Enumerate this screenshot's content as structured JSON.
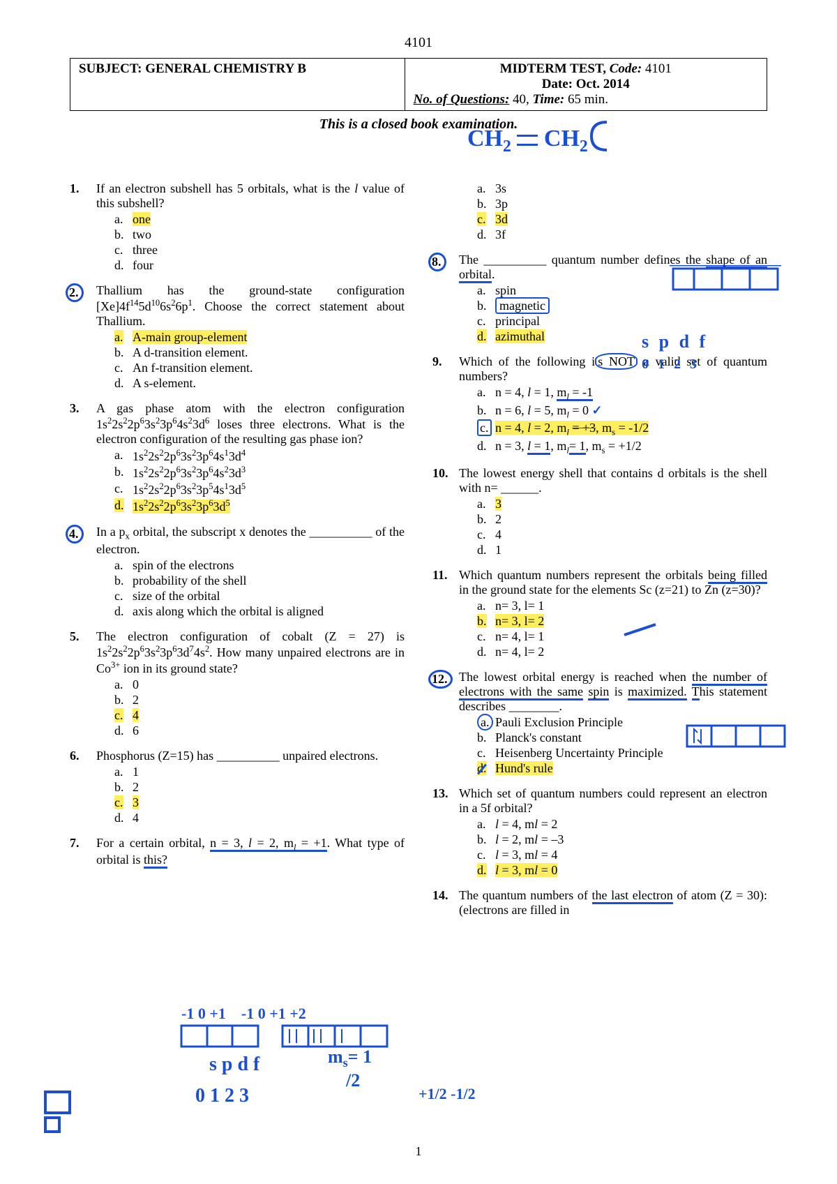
{
  "page_code": "4101",
  "header": {
    "subject_label": "SUBJECT:",
    "subject": "GENERAL CHEMISTRY B",
    "test_label": "MIDTERM TEST,",
    "code_label": "Code:",
    "code": "4101",
    "date_label": "Date:",
    "date": "Oct. 2014",
    "nq_label": "No. of Questions:",
    "nq": "40,",
    "time_label": "Time:",
    "time": "65 min."
  },
  "closed_book": "This is a closed book examination.",
  "footer_page": "1",
  "colors": {
    "highlight": "#ffef5e",
    "pen": "#1a4fd4",
    "text": "#000000",
    "background": "#ffffff"
  },
  "typography": {
    "body_font": "Times New Roman",
    "body_size_pt": 14,
    "pen_font": "Comic Sans MS"
  },
  "annotations": {
    "ch2": "CH₂ = CH₂",
    "spin_box": "s p d f  0 1 2 3",
    "ms_half": "mₛ = 1/2",
    "frac": "+1/2 -1/2",
    "nums_bottom": "0 1 2 3",
    "arrows_bottom": "-1 0 +1   -1 0 +1 +2"
  },
  "left_questions": [
    {
      "num": "1.",
      "text_html": "If an electron subshell has 5 orbitals, what is the <span class='ital'>l</span> value of this subshell?",
      "opts": [
        {
          "l": "a.",
          "t": "one",
          "hl": true
        },
        {
          "l": "b.",
          "t": "two"
        },
        {
          "l": "c.",
          "t": "three"
        },
        {
          "l": "d.",
          "t": "four"
        }
      ]
    },
    {
      "num": "2.",
      "circled": true,
      "text_html": "Thallium has the ground-state configuration [Xe]4f<sup>14</sup>5d<sup>10</sup>6s<sup>2</sup>6p<sup>1</sup>. Choose the correct statement about Thallium.",
      "opts": [
        {
          "l": "a.",
          "t": "A-main group-element",
          "hl": true,
          "hl_letter": true
        },
        {
          "l": "b.",
          "t": "A d-transition element."
        },
        {
          "l": "c.",
          "t": "An f-transition element."
        },
        {
          "l": "d.",
          "t": "A s-element."
        }
      ]
    },
    {
      "num": "3.",
      "text_html": "A gas phase atom with the electron configuration 1s<sup>2</sup>2s<sup>2</sup>2p<sup>6</sup>3s<sup>2</sup>3p<sup>6</sup>4s<sup>2</sup>3d<sup>6</sup> loses three electrons. What is the electron configuration of the resulting gas phase ion?",
      "opts": [
        {
          "l": "a.",
          "t_html": "1s<sup>2</sup>2s<sup>2</sup>2p<sup>6</sup>3s<sup>2</sup>3p<sup>6</sup>4s<sup>1</sup>3d<sup>4</sup>"
        },
        {
          "l": "b.",
          "t_html": "1s<sup>2</sup>2s<sup>2</sup>2p<sup>6</sup>3s<sup>2</sup>3p<sup>6</sup>4s<sup>2</sup>3d<sup>3</sup>"
        },
        {
          "l": "c.",
          "t_html": "1s<sup>2</sup>2s<sup>2</sup>2p<sup>6</sup>3s<sup>2</sup>3p<sup>5</sup>4s<sup>1</sup>3d<sup>5</sup>"
        },
        {
          "l": "d.",
          "t_html": "1s<sup>2</sup>2s<sup>2</sup>2p<sup>6</sup>3s<sup>2</sup>3p<sup>6</sup>3d<sup>5</sup>",
          "hl": true,
          "hl_letter": true
        }
      ]
    },
    {
      "num": "4.",
      "circled": true,
      "text_html": "In a p<sub>x</sub> orbital, the subscript x denotes the __________ of the electron.",
      "opts": [
        {
          "l": "a.",
          "t": "spin of the electrons"
        },
        {
          "l": "b.",
          "t": "probability of the shell"
        },
        {
          "l": "c.",
          "t": "size of the orbital"
        },
        {
          "l": "d.",
          "t": "axis along which the orbital is aligned"
        }
      ]
    },
    {
      "num": "5.",
      "text_html": "The electron configuration of cobalt (Z = 27) is 1s<sup>2</sup>2s<sup>2</sup>2p<sup>6</sup>3s<sup>2</sup>3p<sup>6</sup>3d<sup>7</sup>4s<sup>2</sup>. How many unpaired electrons are in Co<sup>3+</sup> ion in its ground state?",
      "opts": [
        {
          "l": "a.",
          "t": "0"
        },
        {
          "l": "b.",
          "t": "2"
        },
        {
          "l": "c.",
          "t": "4",
          "hl": true,
          "hl_letter": true
        },
        {
          "l": "d.",
          "t": "6"
        }
      ]
    },
    {
      "num": "6.",
      "text_html": "Phosphorus (Z=15) has __________ unpaired electrons.",
      "opts": [
        {
          "l": "a.",
          "t": "1"
        },
        {
          "l": "b.",
          "t": "2"
        },
        {
          "l": "c.",
          "t": "3",
          "hl": true,
          "hl_letter": true
        },
        {
          "l": "d.",
          "t": "4"
        }
      ]
    },
    {
      "num": "7.",
      "text_html": "For a certain orbital, <span class='pen-underline'>n = 3, <span class='ital'>l</span> = 2, m<sub><span class='ital'>l</span></sub> = +1</span>. What type of orbital is <span class='pen-underline'>this?</span>"
    }
  ],
  "right_questions": [
    {
      "opts_only": true,
      "opts": [
        {
          "l": "a.",
          "t": "3s"
        },
        {
          "l": "b.",
          "t": "3p"
        },
        {
          "l": "c.",
          "t": "3d",
          "hl": true,
          "hl_letter": true
        },
        {
          "l": "d.",
          "t": "3f"
        }
      ]
    },
    {
      "num": "8.",
      "circled": true,
      "text_html": "The __________ quantum number defines the <span class='pen-underline'>shape of an orbital</span>.",
      "opts": [
        {
          "l": "a.",
          "t": "spin"
        },
        {
          "l": "b.",
          "t": "magnetic",
          "pen_box": true
        },
        {
          "l": "c.",
          "t": "principal"
        },
        {
          "l": "d.",
          "t": "azimuthal",
          "hl": true,
          "hl_letter": true
        }
      ]
    },
    {
      "num": "9.",
      "text_html": "Which of the following i<span style='border:2px solid #1a4fd4;border-radius:40%;padding:0 2px'>s NOT</span> a valid set of quantum numbers?",
      "opts": [
        {
          "l": "a.",
          "t_html": "n = 4, <span class='ital'>l</span> = 1, <span class='pen-underline'>m<sub><span class='ital'>l</span></sub> = -1</span>"
        },
        {
          "l": "b.",
          "t_html": "n = 6, <span class='ital'>l</span> = 5, m<sub><span class='ital'>l</span></sub> = 0 <span style='color:#1a4fd4;font-weight:bold'>✓</span>"
        },
        {
          "l": "c.",
          "t_html": "n = 4, <span class='ital'>l</span> = 2, m<sub><span class='ital'>l</span></sub> <span style='text-decoration:line-through;text-decoration-color:#1a4fd4'>= +3</span>, m<sub>s</sub> = -1/2",
          "hl": true,
          "pen_box_letter": true
        },
        {
          "l": "d.",
          "t_html": "n = 3, <span class='ital pen-underline'>l</span><span class='pen-underline'> = 1</span>, m<sub><span class='ital'>l</span></sub><span class='pen-underline'>= 1</span>, m<sub>s</sub> = +1/2"
        }
      ]
    },
    {
      "num": "10.",
      "text_html": "The lowest energy shell that contains d orbitals is the shell with n= ______.",
      "opts": [
        {
          "l": "a.",
          "t": "3",
          "hl": true
        },
        {
          "l": "b.",
          "t": "2"
        },
        {
          "l": "c.",
          "t": "4"
        },
        {
          "l": "d.",
          "t": "1"
        }
      ]
    },
    {
      "num": "11.",
      "text_html": "Which quantum numbers represent the orbitals <span class='pen-underline'>being filled</span> in the ground state for the elements Sc (z=21) to Zn (z=30)?",
      "opts": [
        {
          "l": "a.",
          "t": "n= 3, l= 1"
        },
        {
          "l": "b.",
          "t": "n= 3, l= 2",
          "hl": true,
          "hl_letter": true
        },
        {
          "l": "c.",
          "t": "n= 4, l= 1"
        },
        {
          "l": "d.",
          "t": "n= 4, l= 2"
        }
      ]
    },
    {
      "num": "12.",
      "circled": true,
      "text_html": "The lowest orbital energy is reached when <span class='pen-underline'>the number of electrons with the same</span> <span class='pen-underline'>spin</span> is <span class='pen-underline'>maximized.</span> <span class='pen-underline'>T</span>his statement describes ________.",
      "opts": [
        {
          "l": "a.",
          "t": "Pauli Exclusion Principle",
          "pen_circle_letter": true
        },
        {
          "l": "b.",
          "t": "Planck's constant"
        },
        {
          "l": "c.",
          "t": "Heisenberg Uncertainty Principle"
        },
        {
          "l": "d.",
          "t": "Hund's rule",
          "hl": true,
          "hl_letter": true,
          "pen_strike_letter": true
        }
      ]
    },
    {
      "num": "13.",
      "text_html": "Which set of quantum numbers could represent an electron in a 5f orbital?",
      "opts": [
        {
          "l": "a.",
          "t_html": "<span class='ital'>l</span> = 4, m<span class='ital'>l</span> = 2"
        },
        {
          "l": "b.",
          "t_html": "<span class='ital'>l</span> = 2, m<span class='ital'>l</span> = –3"
        },
        {
          "l": "c.",
          "t_html": "<span class='ital'>l</span> = 3, m<span class='ital'>l</span> = 4"
        },
        {
          "l": "d.",
          "t_html": "<span class='ital'>l</span> = 3, m<span class='ital'>l</span> = 0",
          "hl": true,
          "hl_letter": true
        }
      ]
    },
    {
      "num": "14.",
      "text_html": "The quantum numbers of <span class='pen-underline'>the last electron</span> of atom (Z = 30): (electrons are filled in"
    }
  ]
}
